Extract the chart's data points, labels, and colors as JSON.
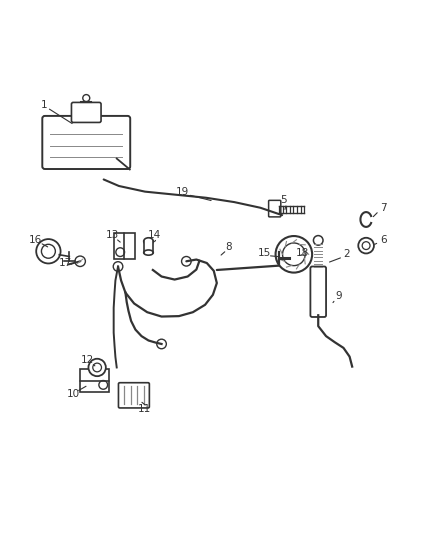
{
  "background_color": "#ffffff",
  "dgray": "#333333",
  "lgray": "#888888"
}
